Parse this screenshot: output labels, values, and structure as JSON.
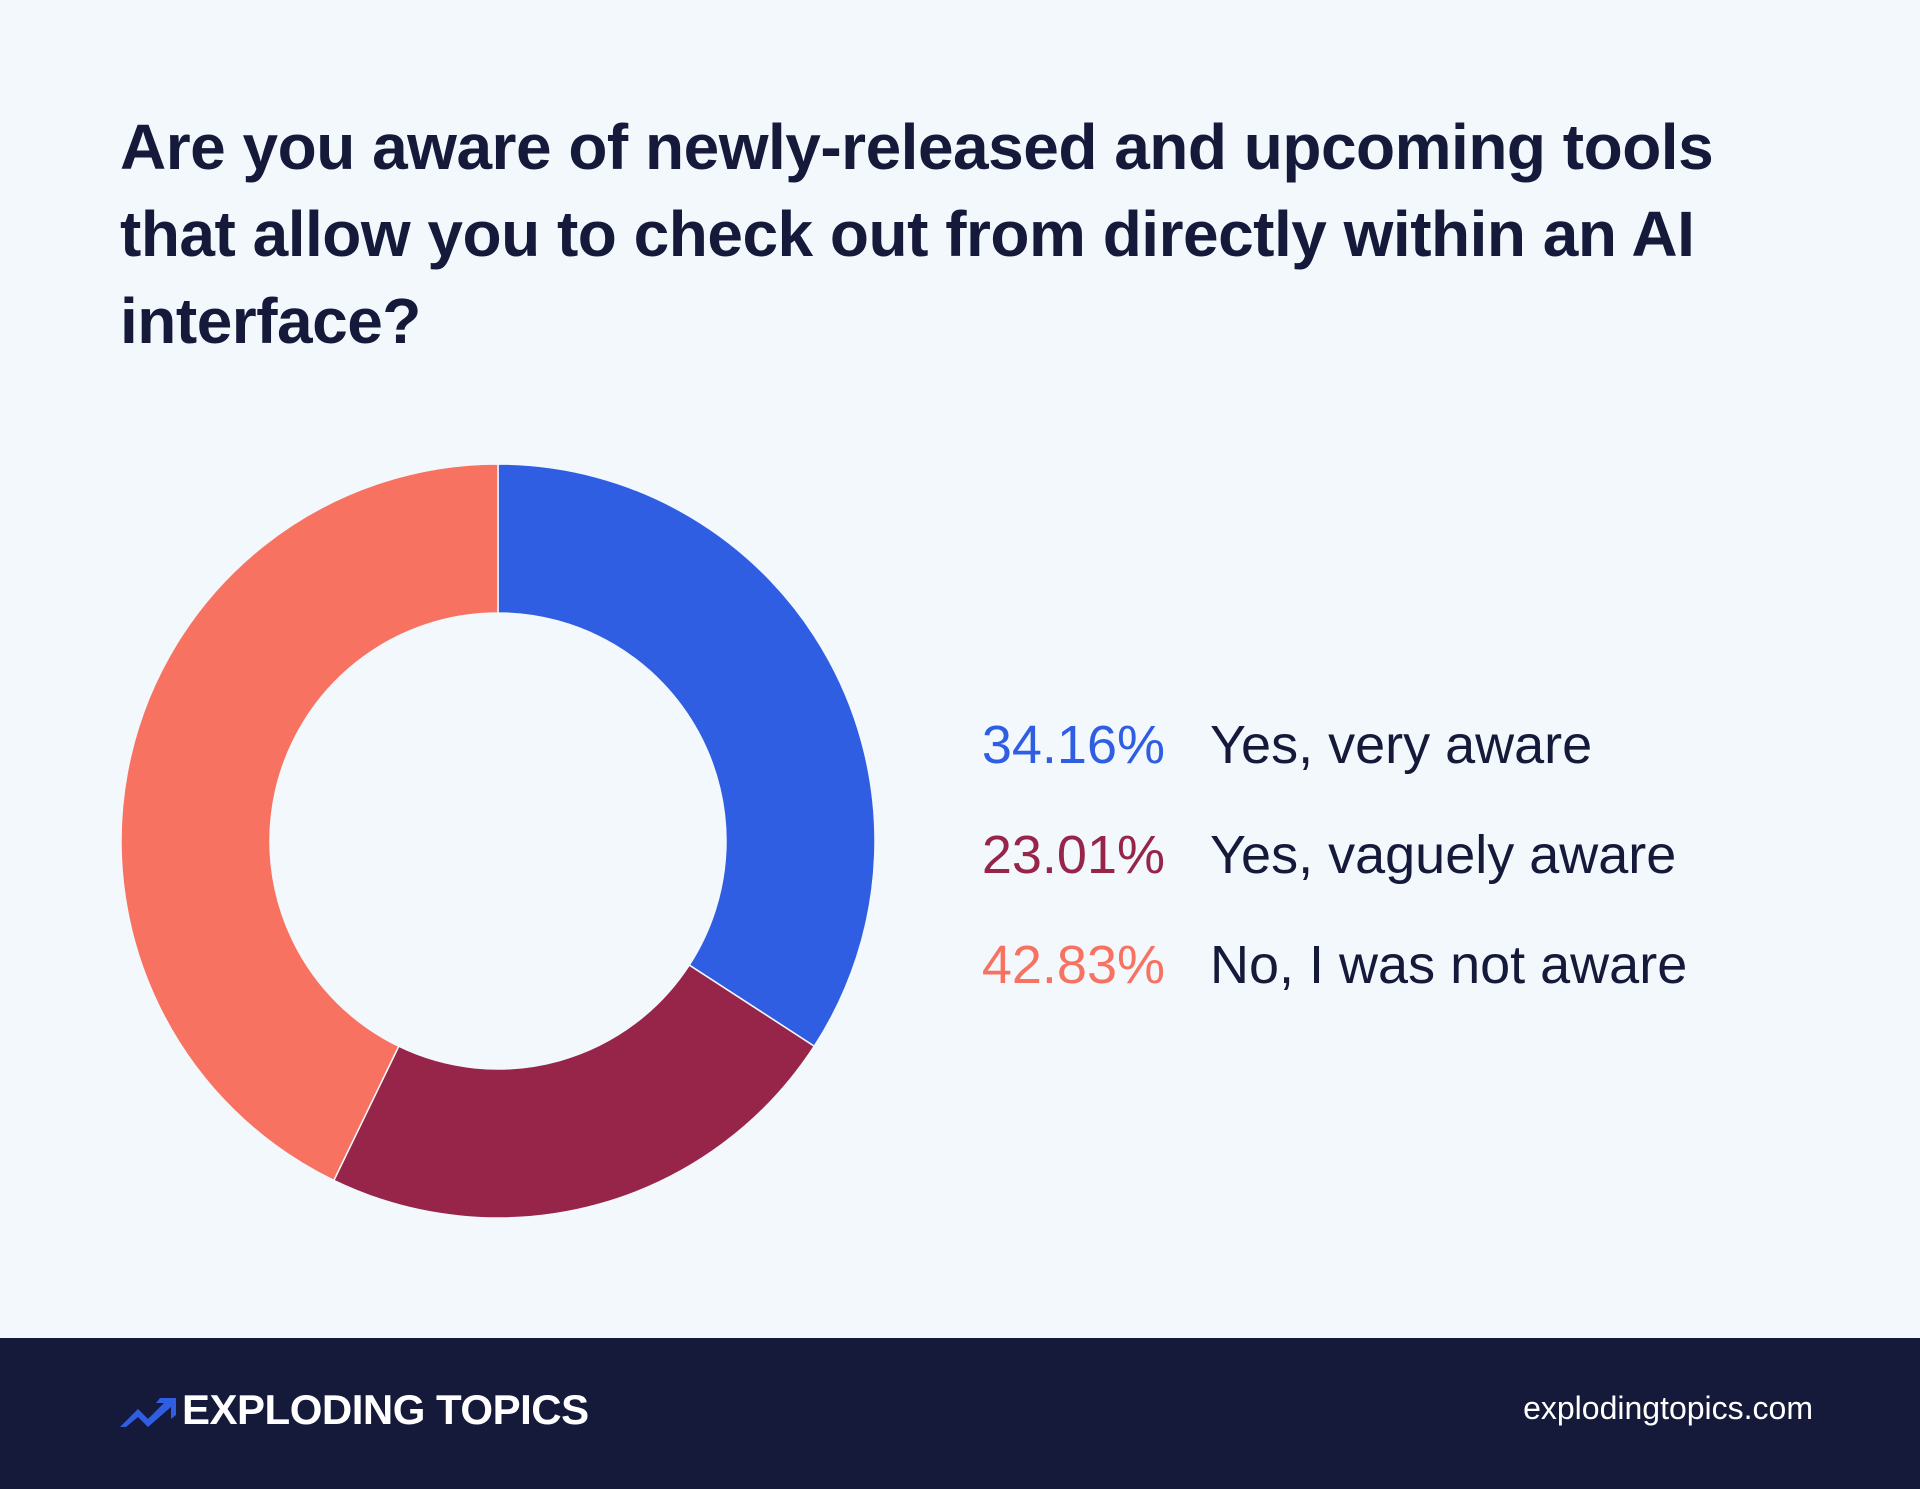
{
  "title": "Are you aware of newly-released and upcoming tools that allow you to check out from directly within an AI interface?",
  "chart_data": {
    "type": "pie",
    "subtype": "donut",
    "title": "Are you aware of newly-released and upcoming tools that allow you to check out from directly within an AI interface?",
    "categories": [
      "Yes, very aware",
      "Yes, vaguely aware",
      "No, I was not aware"
    ],
    "values": [
      34.16,
      23.01,
      42.83
    ],
    "unit": "%",
    "colors": [
      "#2f5ee3",
      "#972449",
      "#f87262"
    ],
    "legend_position": "right",
    "start_angle": "12 o'clock, clockwise"
  },
  "legend": [
    {
      "pct": "34.16%",
      "label": "Yes, very aware",
      "color": "#2f5ee3"
    },
    {
      "pct": "23.01%",
      "label": "Yes, vaguely aware",
      "color": "#972449"
    },
    {
      "pct": "42.83%",
      "label": "No, I was not aware",
      "color": "#f87262"
    }
  ],
  "footer": {
    "brand": "EXPLODING TOPICS",
    "site": "explodingtopics.com",
    "logo_icon": "trend-arrow-icon",
    "brand_color": "#2f5ee3"
  }
}
